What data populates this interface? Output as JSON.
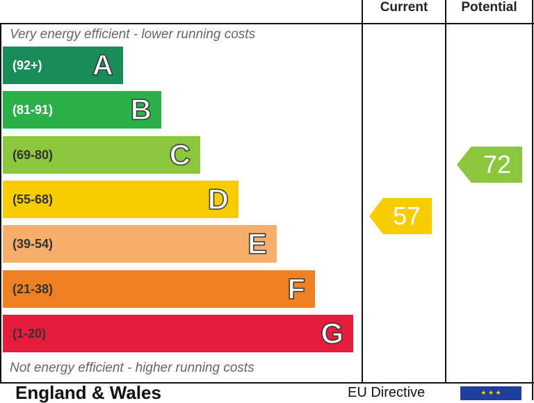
{
  "header": {
    "current": "Current",
    "potential": "Potential"
  },
  "notes": {
    "top": "Very energy efficient - lower running costs",
    "bottom": "Not energy efficient - higher running costs"
  },
  "footer": {
    "region": "England & Wales",
    "directive": "EU Directive"
  },
  "chart_data": {
    "type": "bar",
    "categories": [
      "A",
      "B",
      "C",
      "D",
      "E",
      "F",
      "G"
    ],
    "ranges": [
      "(92+)",
      "(81-91)",
      "(69-80)",
      "(55-68)",
      "(39-54)",
      "(21-38)",
      "(1-20)"
    ],
    "colors": [
      "#1a8c5a",
      "#2bb04a",
      "#8cc63e",
      "#f7cc00",
      "#f5ae6c",
      "#ef8024",
      "#e31d3b"
    ],
    "current": {
      "value": "57",
      "color": "#f7cc00"
    },
    "potential": {
      "value": "72",
      "color": "#8cc63e"
    }
  }
}
